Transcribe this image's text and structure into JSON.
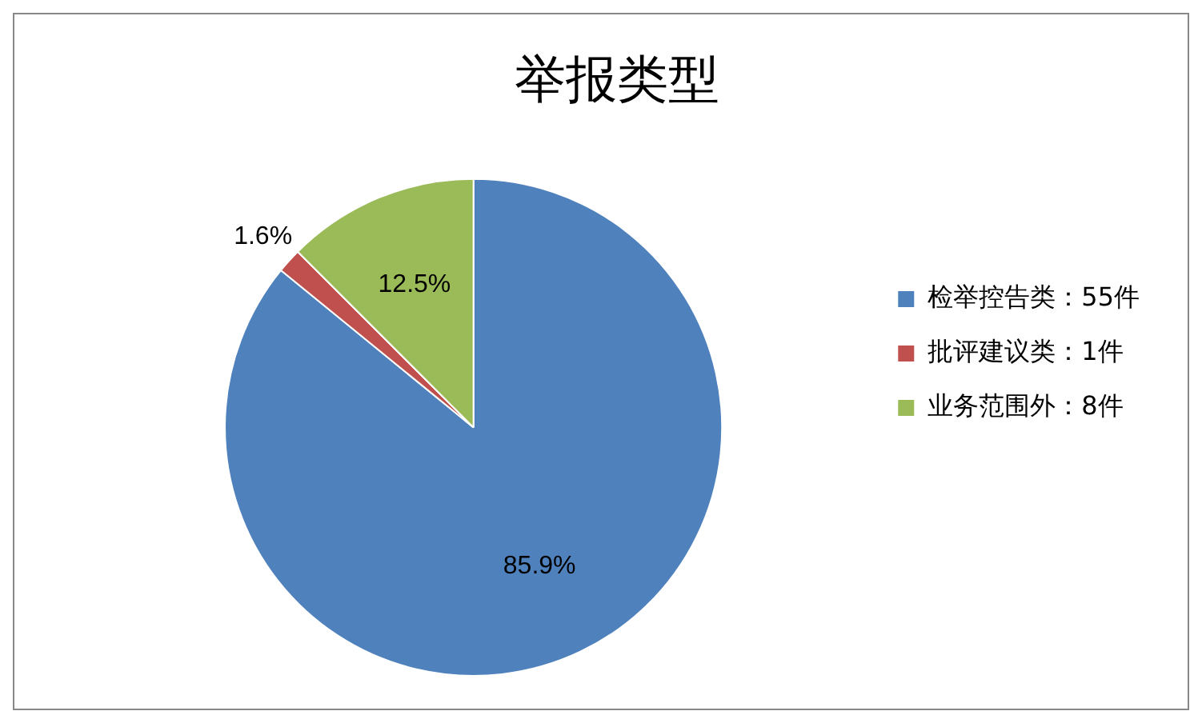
{
  "chart_data": {
    "type": "pie",
    "title": "举报类型",
    "categories": [
      "检举控告类：55件",
      "批评建议类：1件",
      "业务范围外：8件"
    ],
    "values": [
      85.9,
      1.6,
      12.5
    ],
    "value_labels": [
      "85.9%",
      "1.6%",
      "12.5%"
    ],
    "colors": [
      "#4f81bd",
      "#c0504d",
      "#9bbb59"
    ],
    "legend": "right"
  }
}
